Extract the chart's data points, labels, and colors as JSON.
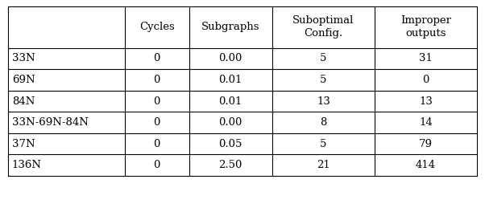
{
  "col_headers": [
    "",
    "Cycles",
    "Subgraphs",
    "Suboptimal\nConfig.",
    "Improper\noutputs"
  ],
  "rows": [
    [
      "33N",
      "0",
      "0.00",
      "5",
      "31"
    ],
    [
      "69N",
      "0",
      "0.01",
      "5",
      "0"
    ],
    [
      "84N",
      "0",
      "0.01",
      "13",
      "13"
    ],
    [
      "33N-69N-84N",
      "0",
      "0.00",
      "8",
      "14"
    ],
    [
      "37N",
      "0",
      "0.05",
      "5",
      "79"
    ],
    [
      "136N",
      "0",
      "2.50",
      "21",
      "414"
    ]
  ],
  "background_color": "#ffffff",
  "text_color": "#000000",
  "line_color": "#000000",
  "font_size": 9.5,
  "fig_width": 6.02,
  "fig_height": 2.64
}
